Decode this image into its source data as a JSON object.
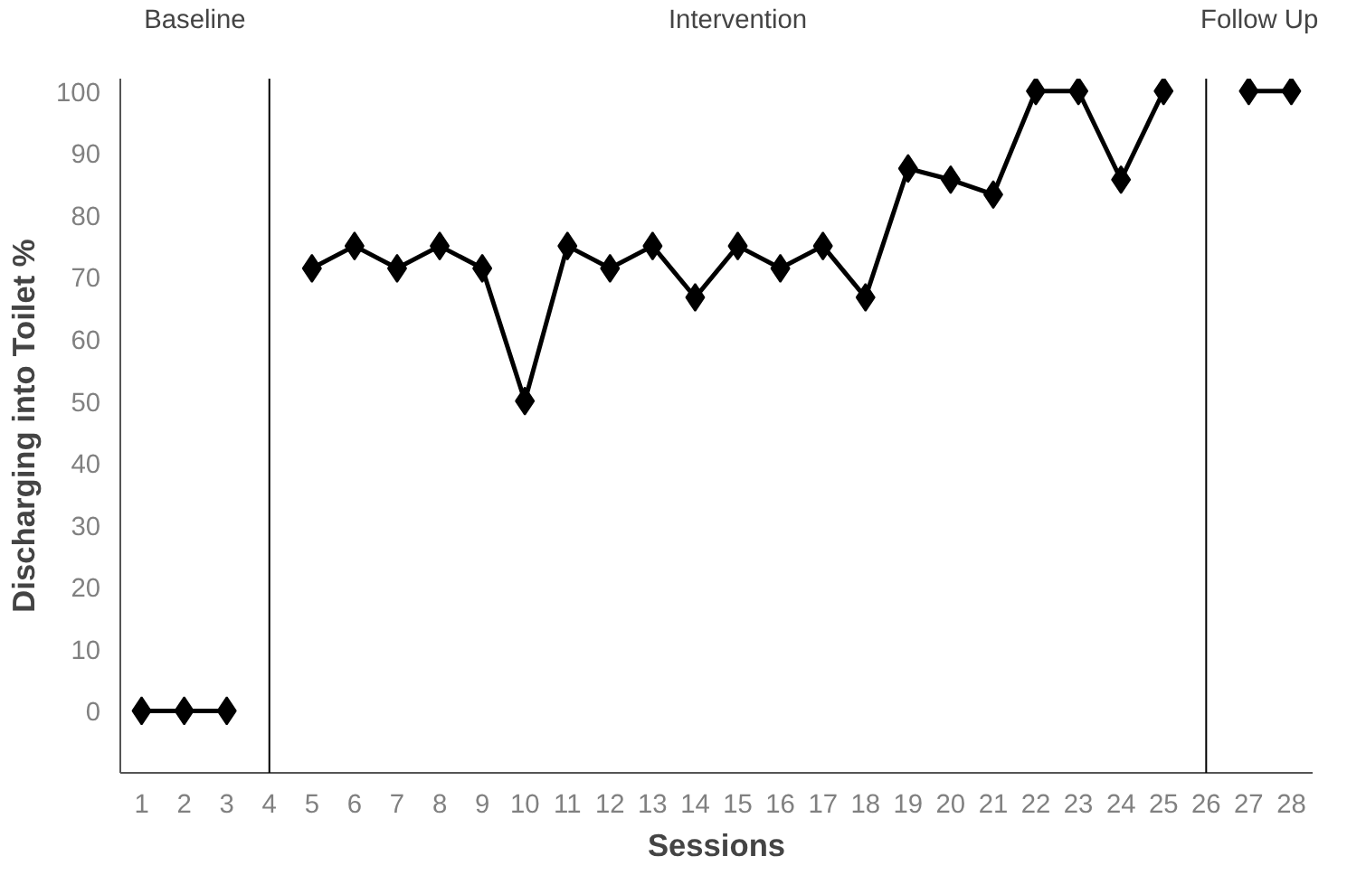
{
  "chart_data": {
    "type": "line",
    "xlabel": "Sessions",
    "ylabel": "Discharging into Toilet %",
    "x": [
      1,
      2,
      3,
      4,
      5,
      6,
      7,
      8,
      9,
      10,
      11,
      12,
      13,
      14,
      15,
      16,
      17,
      18,
      19,
      20,
      21,
      22,
      23,
      24,
      25,
      26,
      27,
      28
    ],
    "series": [
      {
        "color": "#000000",
        "values": [
          0,
          0,
          0,
          null,
          71.4,
          75,
          71.4,
          75,
          71.4,
          50,
          75,
          71.4,
          75,
          66.7,
          75,
          71.4,
          75,
          66.7,
          87.5,
          85.7,
          83.3,
          100,
          100,
          85.7,
          100,
          null,
          100,
          100
        ]
      }
    ],
    "xlim": [
      0.5,
      28.5
    ],
    "xticks": [
      1,
      2,
      3,
      4,
      5,
      6,
      7,
      8,
      9,
      10,
      11,
      12,
      13,
      14,
      15,
      16,
      17,
      18,
      19,
      20,
      21,
      22,
      23,
      24,
      25,
      26,
      27,
      28
    ],
    "ylim": [
      -10,
      102
    ],
    "yticks": [
      0,
      10,
      20,
      30,
      40,
      50,
      60,
      70,
      80,
      90,
      100
    ],
    "ref_lines": [
      {
        "axis": "x",
        "value": 4,
        "color": "#000000"
      },
      {
        "axis": "x",
        "value": 26,
        "color": "#000000"
      }
    ],
    "annotations": [
      "Baseline",
      "Intervention",
      "Follow Up"
    ],
    "marker": "diamond",
    "line_style": "solid",
    "grid": false
  }
}
